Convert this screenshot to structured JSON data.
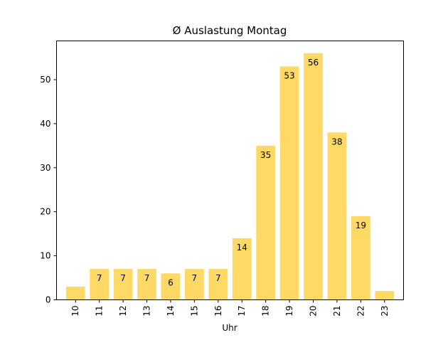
{
  "chart_data": {
    "type": "bar",
    "title": "Ø Auslastung Montag",
    "xlabel": "Uhr",
    "ylabel": "",
    "categories": [
      "10",
      "11",
      "12",
      "13",
      "14",
      "15",
      "16",
      "17",
      "18",
      "19",
      "20",
      "21",
      "22",
      "23"
    ],
    "values": [
      3,
      7,
      7,
      7,
      6,
      7,
      7,
      14,
      35,
      53,
      56,
      38,
      19,
      2
    ],
    "data_labels": [
      "",
      "7",
      "7",
      "7",
      "6",
      "7",
      "7",
      "14",
      "35",
      "53",
      "56",
      "38",
      "19",
      ""
    ],
    "yticks": [
      0,
      10,
      20,
      30,
      40,
      50
    ],
    "ylim": [
      0,
      58.8
    ],
    "grid": false,
    "legend": "none",
    "bar_color": "#FFD966"
  }
}
